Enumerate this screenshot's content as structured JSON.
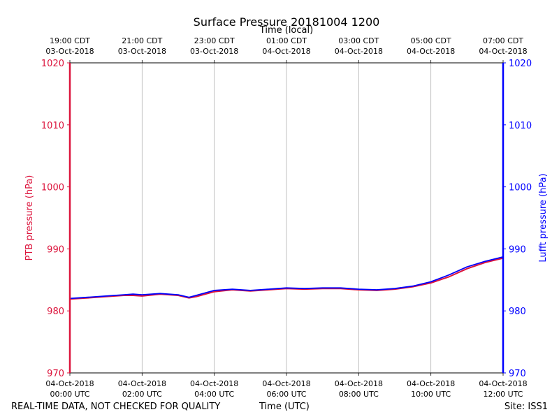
{
  "chart_data": {
    "type": "line",
    "title": "Surface Pressure 20181004 1200",
    "xlabel_bottom": "Time (UTC)",
    "xlabel_top": "Time (local)",
    "ylabel_left": "PTB pressure (hPa)",
    "ylabel_right": "Lufft pressure (hPa)",
    "ylim": [
      970,
      1020
    ],
    "yticks": [
      970,
      980,
      990,
      1000,
      1010,
      1020
    ],
    "xlim_hours": [
      0,
      12
    ],
    "grid": "vertical",
    "bottom_ticks": [
      {
        "hour": 0,
        "line1": "04-Oct-2018",
        "line2": "00:00 UTC"
      },
      {
        "hour": 2,
        "line1": "04-Oct-2018",
        "line2": "02:00 UTC"
      },
      {
        "hour": 4,
        "line1": "04-Oct-2018",
        "line2": "04:00 UTC"
      },
      {
        "hour": 6,
        "line1": "04-Oct-2018",
        "line2": "06:00 UTC"
      },
      {
        "hour": 8,
        "line1": "04-Oct-2018",
        "line2": "08:00 UTC"
      },
      {
        "hour": 10,
        "line1": "04-Oct-2018",
        "line2": "10:00 UTC"
      },
      {
        "hour": 12,
        "line1": "04-Oct-2018",
        "line2": "12:00 UTC"
      }
    ],
    "top_ticks": [
      {
        "hour": 0,
        "line1": "19:00 CDT",
        "line2": "03-Oct-2018"
      },
      {
        "hour": 2,
        "line1": "21:00 CDT",
        "line2": "03-Oct-2018"
      },
      {
        "hour": 4,
        "line1": "23:00 CDT",
        "line2": "03-Oct-2018"
      },
      {
        "hour": 6,
        "line1": "01:00 CDT",
        "line2": "04-Oct-2018"
      },
      {
        "hour": 8,
        "line1": "03:00 CDT",
        "line2": "04-Oct-2018"
      },
      {
        "hour": 10,
        "line1": "05:00 CDT",
        "line2": "04-Oct-2018"
      },
      {
        "hour": 12,
        "line1": "07:00 CDT",
        "line2": "04-Oct-2018"
      }
    ],
    "series": [
      {
        "name": "PTB pressure",
        "axis": "left",
        "color": "#dc143c",
        "x_hours": [
          0,
          0.5,
          1,
          1.5,
          1.75,
          2,
          2.5,
          3,
          3.3,
          3.5,
          4,
          4.5,
          5,
          5.5,
          6,
          6.5,
          7,
          7.5,
          8,
          8.5,
          9,
          9.5,
          10,
          10.5,
          11,
          11.5,
          12
        ],
        "values": [
          981.9,
          982.1,
          982.3,
          982.5,
          982.5,
          982.4,
          982.7,
          982.5,
          982.1,
          982.3,
          983.1,
          983.4,
          983.2,
          983.4,
          983.6,
          983.5,
          983.6,
          983.6,
          983.4,
          983.3,
          983.5,
          983.9,
          984.5,
          985.5,
          986.8,
          987.8,
          988.5
        ]
      },
      {
        "name": "Lufft pressure",
        "axis": "right",
        "color": "#0000ff",
        "x_hours": [
          0,
          0.5,
          1,
          1.5,
          1.75,
          2,
          2.5,
          3,
          3.3,
          3.5,
          4,
          4.5,
          5,
          5.5,
          6,
          6.5,
          7,
          7.5,
          8,
          8.5,
          9,
          9.5,
          10,
          10.5,
          11,
          11.5,
          12
        ],
        "values": [
          982.0,
          982.2,
          982.4,
          982.6,
          982.7,
          982.6,
          982.8,
          982.6,
          982.2,
          982.5,
          983.3,
          983.5,
          983.3,
          983.5,
          983.7,
          983.6,
          983.7,
          983.7,
          983.5,
          983.4,
          983.6,
          984.0,
          984.7,
          985.8,
          987.1,
          988.0,
          988.7
        ]
      }
    ]
  },
  "footer": {
    "left": "REAL-TIME DATA, NOT CHECKED FOR QUALITY",
    "center": "Time (UTC)",
    "right": "Site: ISS1"
  }
}
